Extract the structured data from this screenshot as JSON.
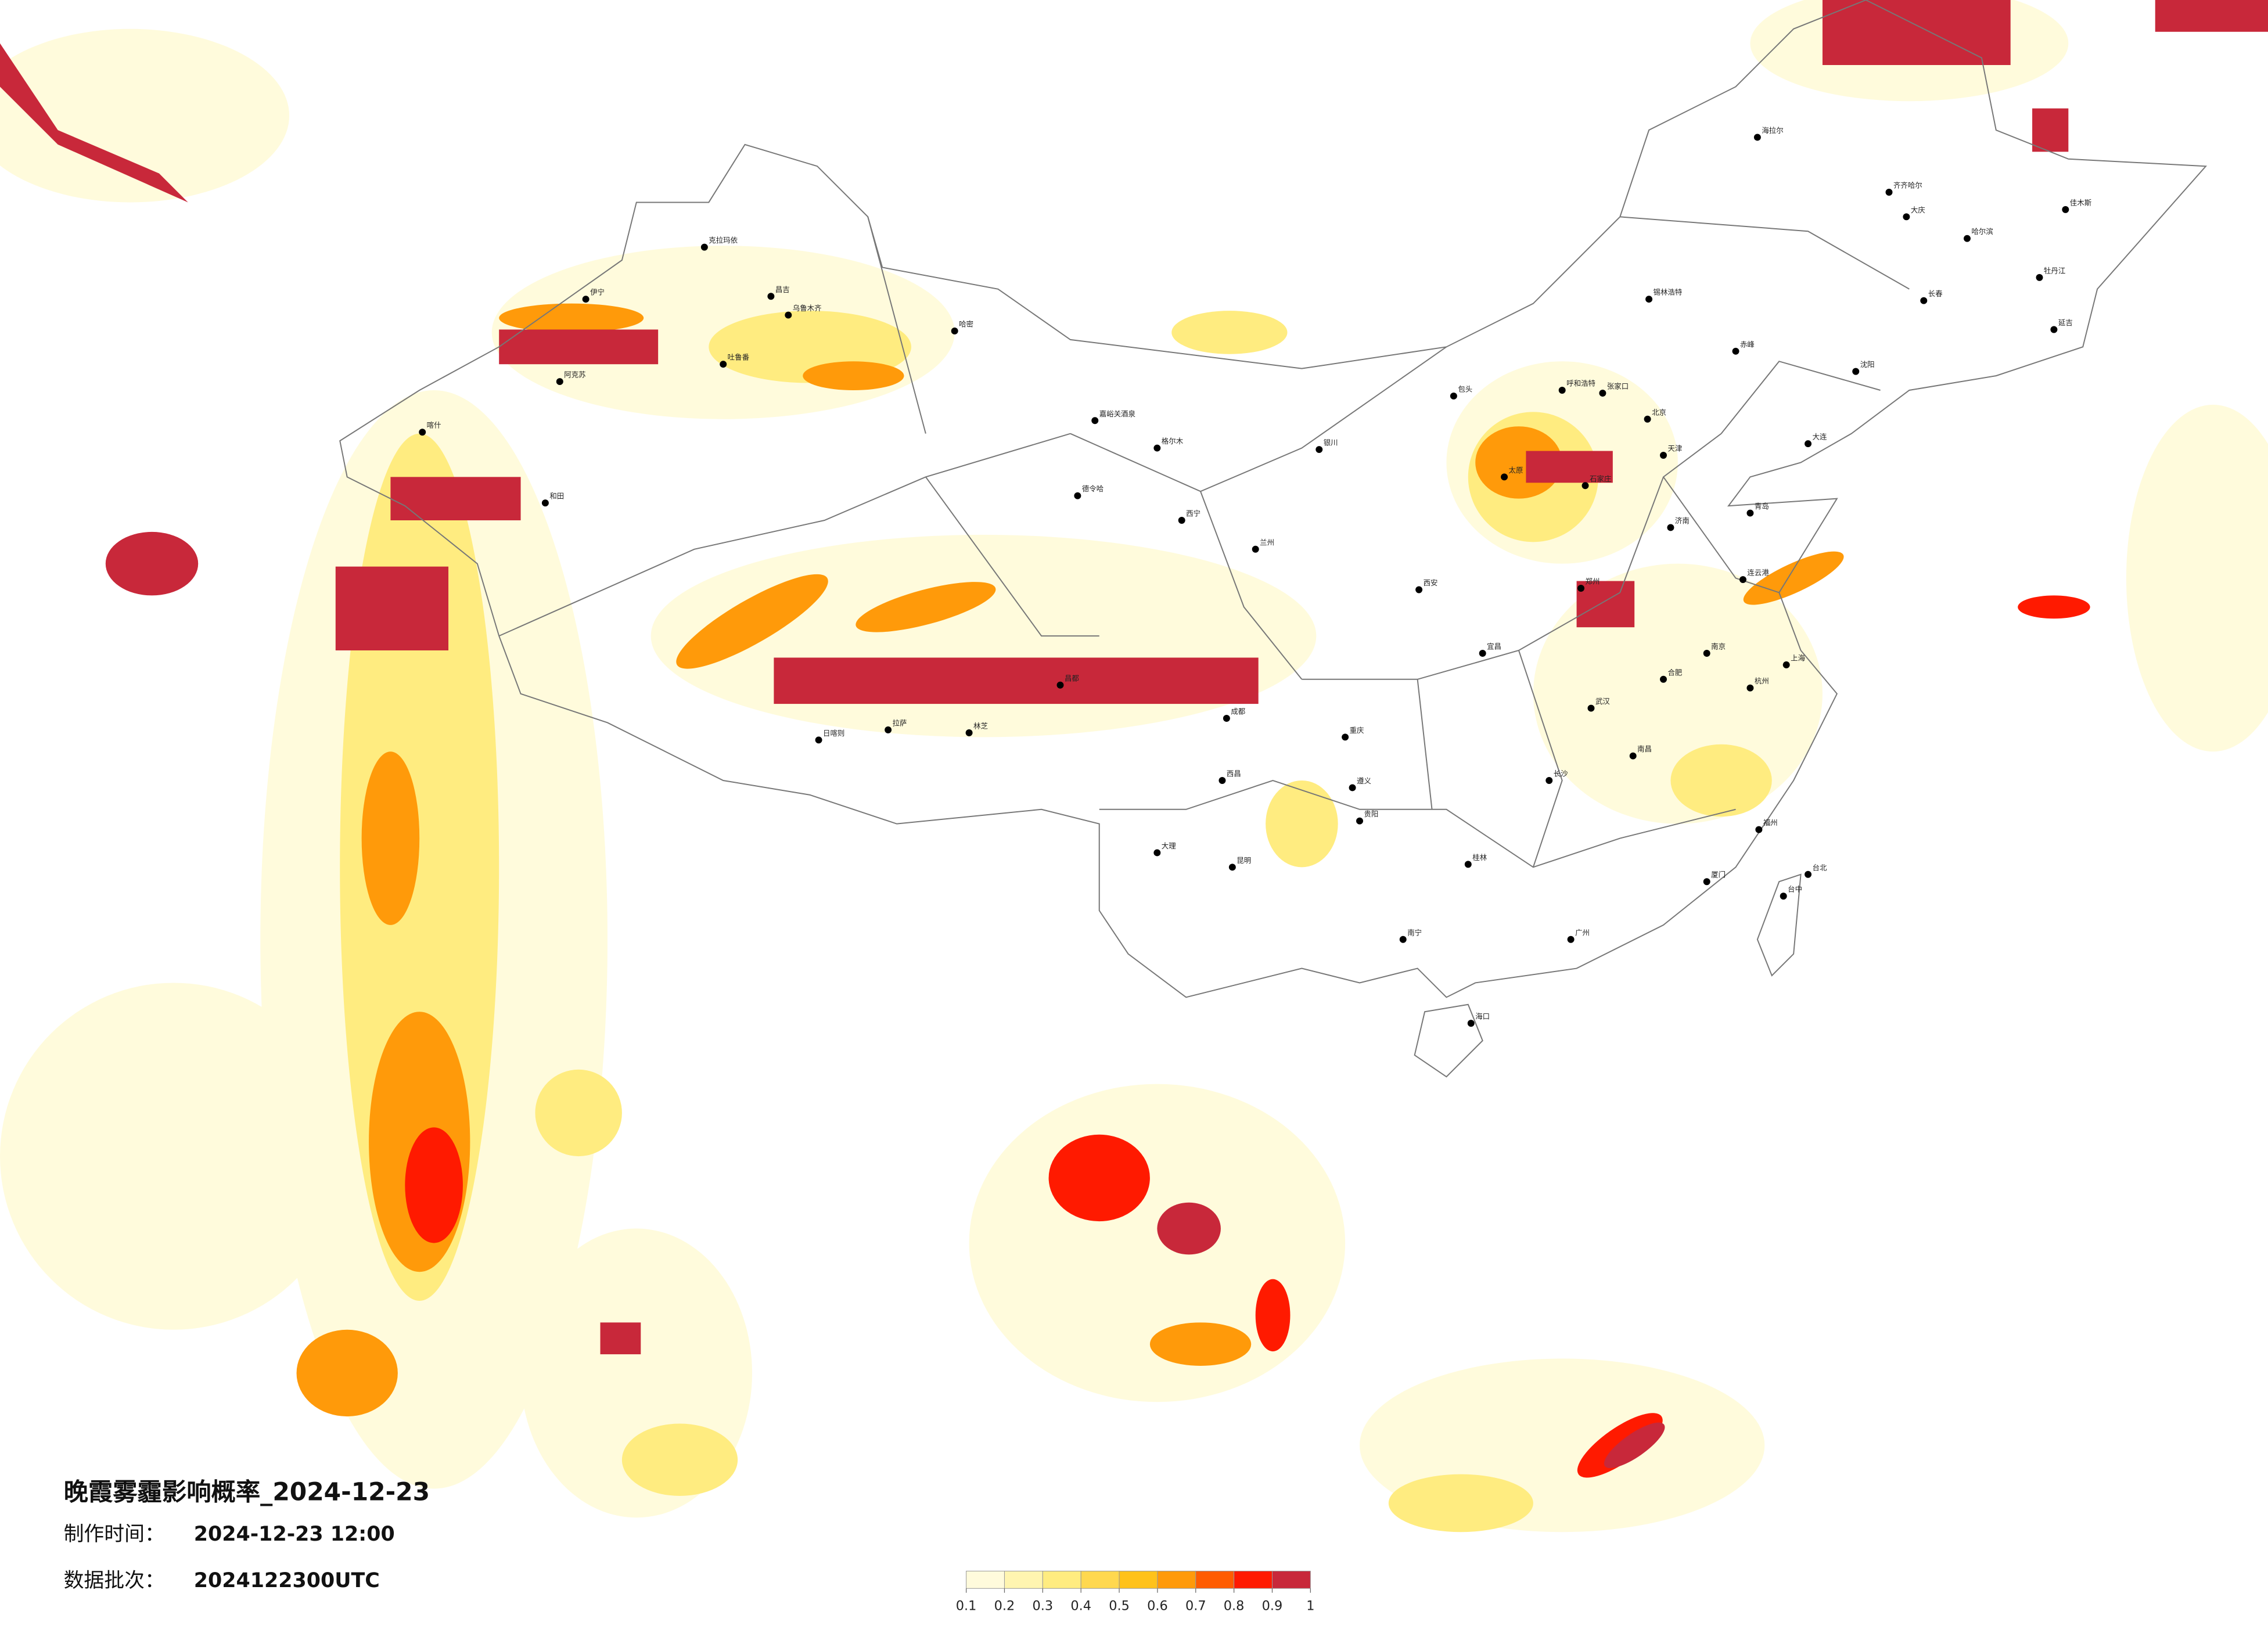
{
  "title": "晚霞雾霾影响概率_2024-12-23",
  "meta": [
    {
      "label": "制作时间：",
      "value": "2024-12-23 12:00"
    },
    {
      "label": "数据批次：",
      "value": "2024122300UTC"
    }
  ],
  "legend": {
    "colors": [
      "#fffbdc",
      "#fff5b0",
      "#ffec80",
      "#ffd84f",
      "#ffc21a",
      "#ff9a0a",
      "#ff5c00",
      "#ff1a00",
      "#c8283a"
    ],
    "ticks": [
      0.1,
      0.2,
      0.3,
      0.4,
      0.5,
      0.6,
      0.7,
      0.8,
      0.9,
      1
    ]
  },
  "cities": [
    "克拉玛依",
    "伊宁",
    "阿克苏",
    "喀什",
    "和田",
    "昌吉",
    "乌鲁木齐",
    "吐鲁番",
    "哈密",
    "嘉峪关酒泉",
    "德令哈",
    "格尔木",
    "日喀则",
    "拉萨",
    "林芝",
    "昌都",
    "西宁",
    "兰州",
    "银川",
    "呼和浩特",
    "包头",
    "北京",
    "天津",
    "石家庄",
    "太原",
    "济南",
    "郑州",
    "西安",
    "成都",
    "重庆",
    "武汉",
    "长沙",
    "南昌",
    "合肥",
    "南京",
    "上海",
    "杭州",
    "福州",
    "广州",
    "南宁",
    "昆明",
    "贵阳",
    "海口",
    "台北",
    "台中",
    "哈尔滨",
    "长春",
    "沈阳",
    "大连",
    "海拉尔",
    "齐齐哈尔",
    "锡林浩特",
    "大庆",
    "佳木斯",
    "牡丹江",
    "延吉",
    "赤峰",
    "张家口",
    "连云港",
    "厦门",
    "桂林",
    "大理",
    "西昌",
    "遵义",
    "宜昌",
    "青岛"
  ]
}
